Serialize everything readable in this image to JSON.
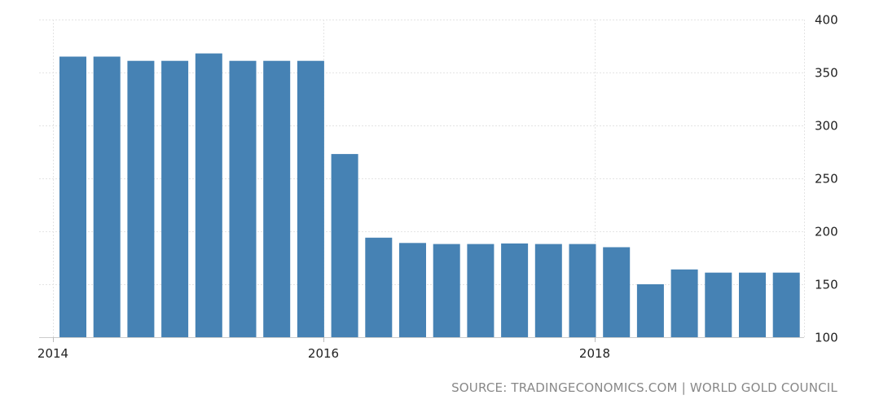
{
  "chart_data": {
    "type": "bar",
    "title": "",
    "xlabel": "",
    "ylabel": "",
    "x_ticks": [
      "2014",
      "2016",
      "2018"
    ],
    "y_ticks": [
      "100",
      "150",
      "200",
      "250",
      "300",
      "350",
      "400"
    ],
    "ylim": [
      100,
      400
    ],
    "y_axis_side": "right",
    "grid": true,
    "bar_color": "#4682b4",
    "categories": [
      "2014-Q1",
      "2014-Q2",
      "2014-Q3",
      "2014-Q4",
      "2015-Q1",
      "2015-Q2",
      "2015-Q3",
      "2015-Q4",
      "2016-Q1",
      "2016-Q2",
      "2016-Q3",
      "2016-Q4",
      "2017-Q1",
      "2017-Q2",
      "2017-Q3",
      "2017-Q4",
      "2018-Q1",
      "2018-Q2",
      "2018-Q3",
      "2018-Q4",
      "2019-Q1",
      "2019-Q2"
    ],
    "values": [
      365,
      365,
      361,
      361,
      368,
      361,
      361,
      361,
      273,
      194,
      189,
      188,
      188,
      188.5,
      188,
      188,
      185,
      150,
      164,
      161,
      161,
      161
    ]
  },
  "source": {
    "text": "SOURCE: TRADINGECONOMICS.COM | WORLD GOLD COUNCIL"
  }
}
